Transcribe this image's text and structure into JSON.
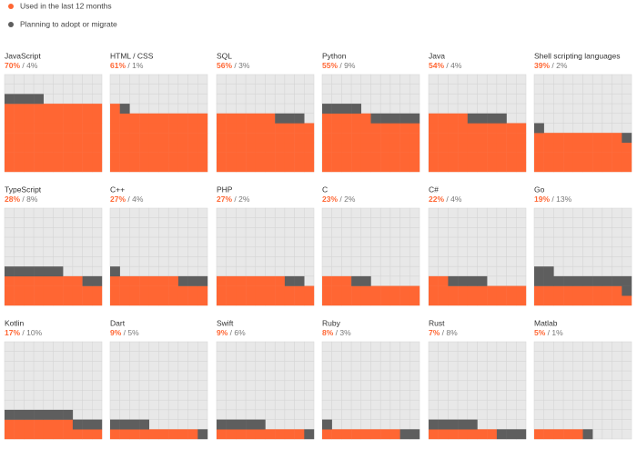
{
  "chart_data": {
    "type": "waffle",
    "categories": [
      "JavaScript",
      "HTML / CSS",
      "SQL",
      "Python",
      "Java",
      "Shell scripting languages",
      "TypeScript",
      "C++",
      "PHP",
      "C",
      "C#",
      "Go",
      "Kotlin",
      "Dart",
      "Swift",
      "Ruby",
      "Rust",
      "Matlab"
    ],
    "series": [
      {
        "name": "Used in the last 12 months",
        "color": "#ff6633",
        "values": [
          70,
          61,
          56,
          55,
          54,
          39,
          28,
          27,
          27,
          23,
          22,
          19,
          17,
          9,
          9,
          8,
          7,
          5
        ],
        "value_labels": [
          "70%",
          "61%",
          "56%",
          "55%",
          "54%",
          "39%",
          "28%",
          "27%",
          "27%",
          "23%",
          "22%",
          "19%",
          "17%",
          "9%",
          "9%",
          "8%",
          "7%",
          "5%"
        ]
      },
      {
        "name": "Planning to adopt or migrate",
        "color": "#5e5e5e",
        "values": [
          4,
          1,
          3,
          9,
          4,
          2,
          8,
          4,
          2,
          2,
          4,
          13,
          10,
          5,
          6,
          3,
          8,
          1
        ],
        "value_labels": [
          "4%",
          "1%",
          "3%",
          "9%",
          "4%",
          "2%",
          "8%",
          "4%",
          "2%",
          "2%",
          "4%",
          "13%",
          "10%",
          "5%",
          "6%",
          "3%",
          "8%",
          "1%"
        ]
      }
    ],
    "label_separator": " / "
  }
}
